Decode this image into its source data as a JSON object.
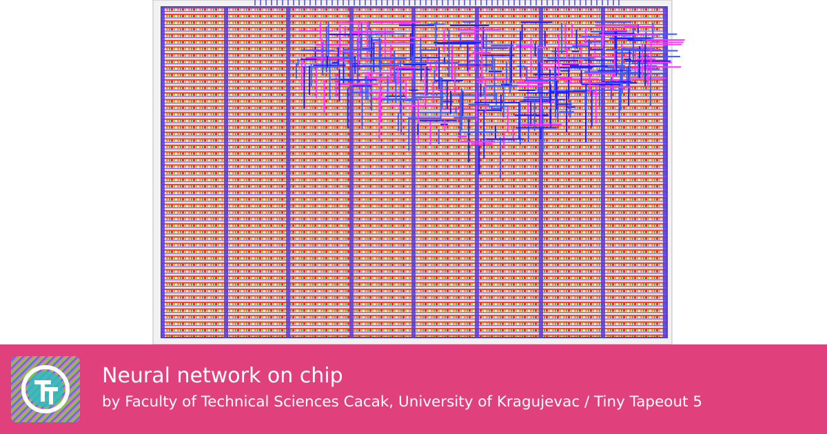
{
  "card": {
    "title": "Neural network on chip",
    "subtitle": "by Faculty of Technical Sciences Cacak, University of Kragujevac / Tiny Tapeout 5"
  }
}
